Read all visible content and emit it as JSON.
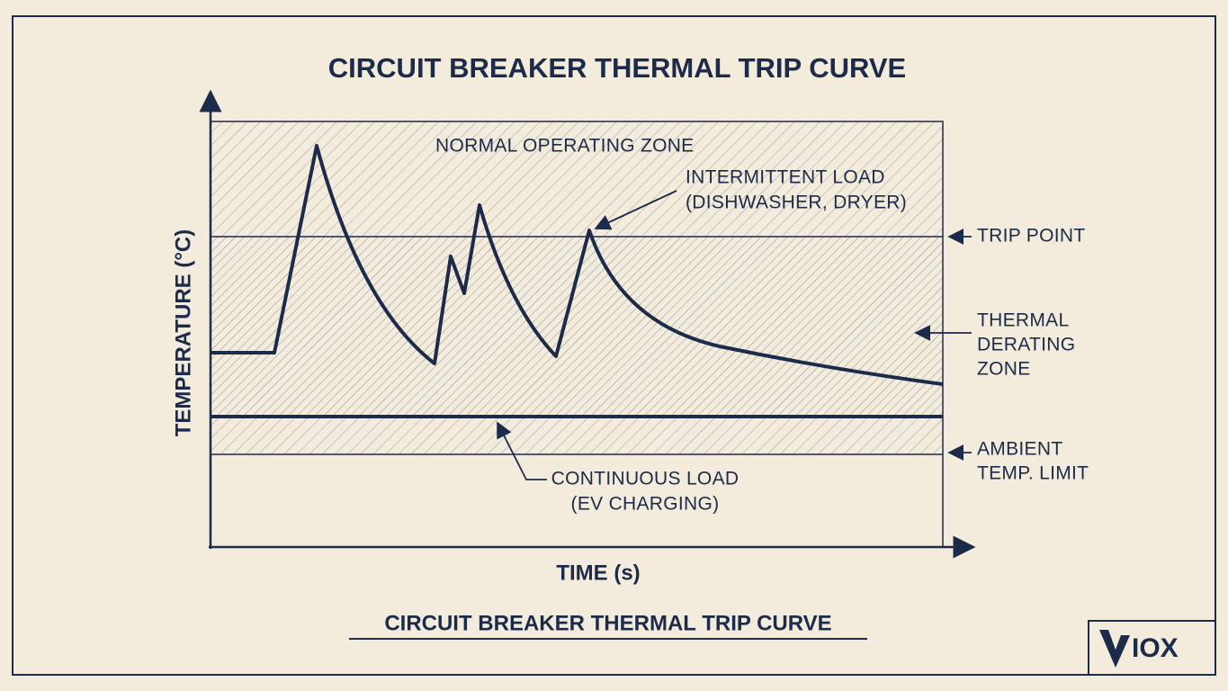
{
  "header": {
    "title": "CIRCUIT BREAKER THERMAL TRIP CURVE"
  },
  "axes": {
    "y_label": "TEMPERATURE (°C)",
    "x_label": "TIME (s)"
  },
  "zones": {
    "normal": "NORMAL OPERATING ZONE",
    "derating": [
      "THERMAL",
      "DERATING",
      "ZONE"
    ]
  },
  "annotations": {
    "intermittent": [
      "INTERMITTENT LOAD",
      "(DISHWASHER, DRYER)"
    ],
    "trip_point": "TRIP POINT",
    "ambient": [
      "AMBIENT",
      "TEMP. LIMIT"
    ],
    "continuous": [
      "CONTINUOUS LOAD",
      "(EV CHARGING)"
    ]
  },
  "footer": {
    "caption": "CIRCUIT BREAKER THERMAL TRIP CURVE"
  },
  "logo": {
    "text": "IOX"
  }
}
